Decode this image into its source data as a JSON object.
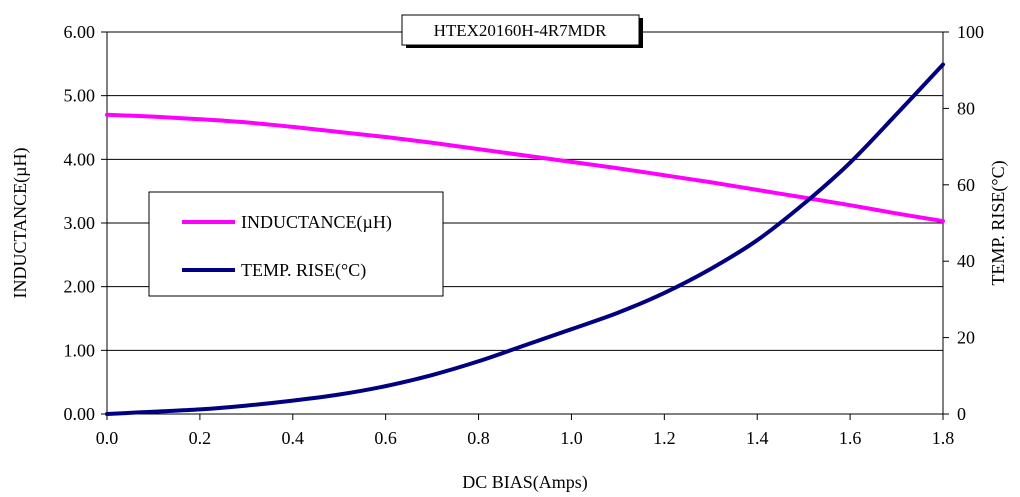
{
  "chart_data": {
    "type": "line",
    "title": "HTEX20160H-4R7MDR",
    "xlabel": "DC BIAS(Amps)",
    "ylabel_left": "INDUCTANCE(µH)",
    "ylabel_right": "TEMP. RISE(°C)",
    "xlim": [
      0,
      1.8
    ],
    "ylim_left": [
      0,
      6
    ],
    "ylim_right": [
      0,
      100
    ],
    "x_ticks": [
      "0.0",
      "0.2",
      "0.4",
      "0.6",
      "0.8",
      "1.0",
      "1.2",
      "1.4",
      "1.6",
      "1.8"
    ],
    "y_left_ticks": [
      "0.00",
      "1.00",
      "2.00",
      "3.00",
      "4.00",
      "5.00",
      "6.00"
    ],
    "y_right_ticks": [
      "0",
      "20",
      "40",
      "60",
      "80",
      "100"
    ],
    "grid": "horizontal",
    "legend_position": "center-left",
    "series": [
      {
        "name": "INDUCTANCE(µH)",
        "axis": "left",
        "color": "#ff00ff",
        "x": [
          0,
          0.1,
          0.2,
          0.3,
          0.4,
          0.5,
          0.6,
          0.7,
          0.8,
          0.9,
          1.0,
          1.1,
          1.2,
          1.3,
          1.4,
          1.5,
          1.6,
          1.7,
          1.8
        ],
        "y": [
          4.7,
          4.67,
          4.63,
          4.58,
          4.51,
          4.43,
          4.35,
          4.26,
          4.16,
          4.06,
          3.96,
          3.86,
          3.75,
          3.64,
          3.52,
          3.4,
          3.28,
          3.15,
          3.03
        ]
      },
      {
        "name": "TEMP. RISE(°C)",
        "axis": "right",
        "color": "#000080",
        "x": [
          0,
          0.1,
          0.2,
          0.3,
          0.4,
          0.5,
          0.6,
          0.7,
          0.8,
          0.9,
          1.0,
          1.1,
          1.2,
          1.3,
          1.4,
          1.5,
          1.6,
          1.7,
          1.8
        ],
        "y": [
          0,
          0.6,
          1.2,
          2.2,
          3.5,
          5.1,
          7.3,
          10.2,
          13.8,
          18.0,
          22.2,
          26.5,
          31.7,
          38.0,
          45.5,
          55.0,
          65.8,
          78.5,
          91.5
        ]
      }
    ]
  }
}
